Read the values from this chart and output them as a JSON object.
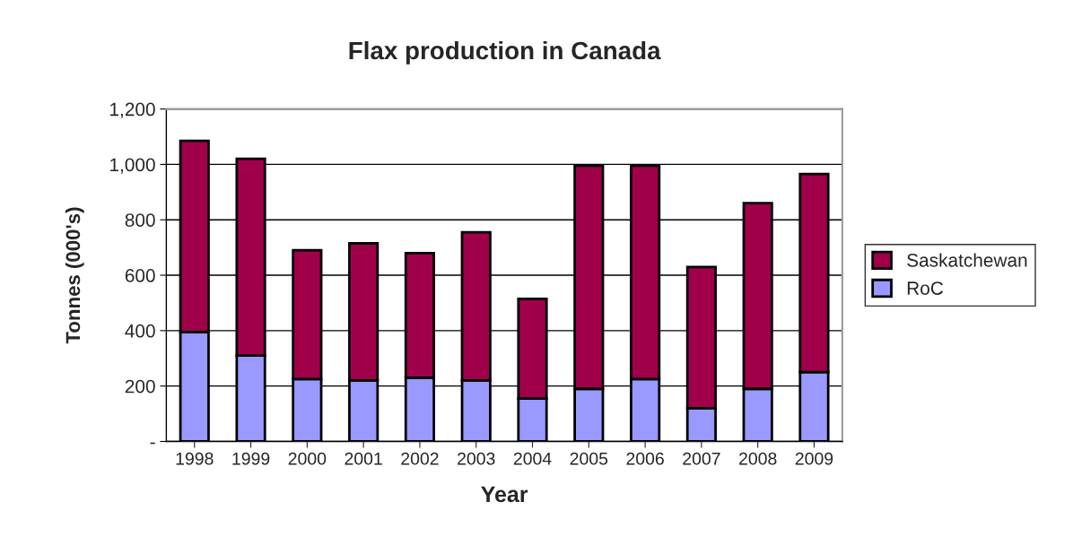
{
  "chart_data": {
    "type": "bar",
    "title": "Flax production in Canada",
    "xlabel": "Year",
    "ylabel": "Tonnes (000's)",
    "categories": [
      "1998",
      "1999",
      "2000",
      "2001",
      "2002",
      "2003",
      "2004",
      "2005",
      "2006",
      "2007",
      "2008",
      "2009"
    ],
    "stacked": true,
    "series": [
      {
        "name": "RoC",
        "color": "#9999ff",
        "values": [
          395,
          310,
          225,
          220,
          230,
          220,
          155,
          190,
          225,
          120,
          190,
          250
        ]
      },
      {
        "name": "Saskatchewan",
        "color": "#a0004a",
        "values": [
          690,
          710,
          465,
          495,
          450,
          535,
          360,
          805,
          770,
          510,
          670,
          715
        ]
      }
    ],
    "ylim": [
      0,
      1200
    ],
    "yticks": [
      {
        "value": 0,
        "label": "-"
      },
      200,
      400,
      600,
      800,
      {
        "value": 1000,
        "label": "1,000"
      },
      {
        "value": 1200,
        "label": "1,200"
      }
    ],
    "grid": "y",
    "legend": "right"
  }
}
